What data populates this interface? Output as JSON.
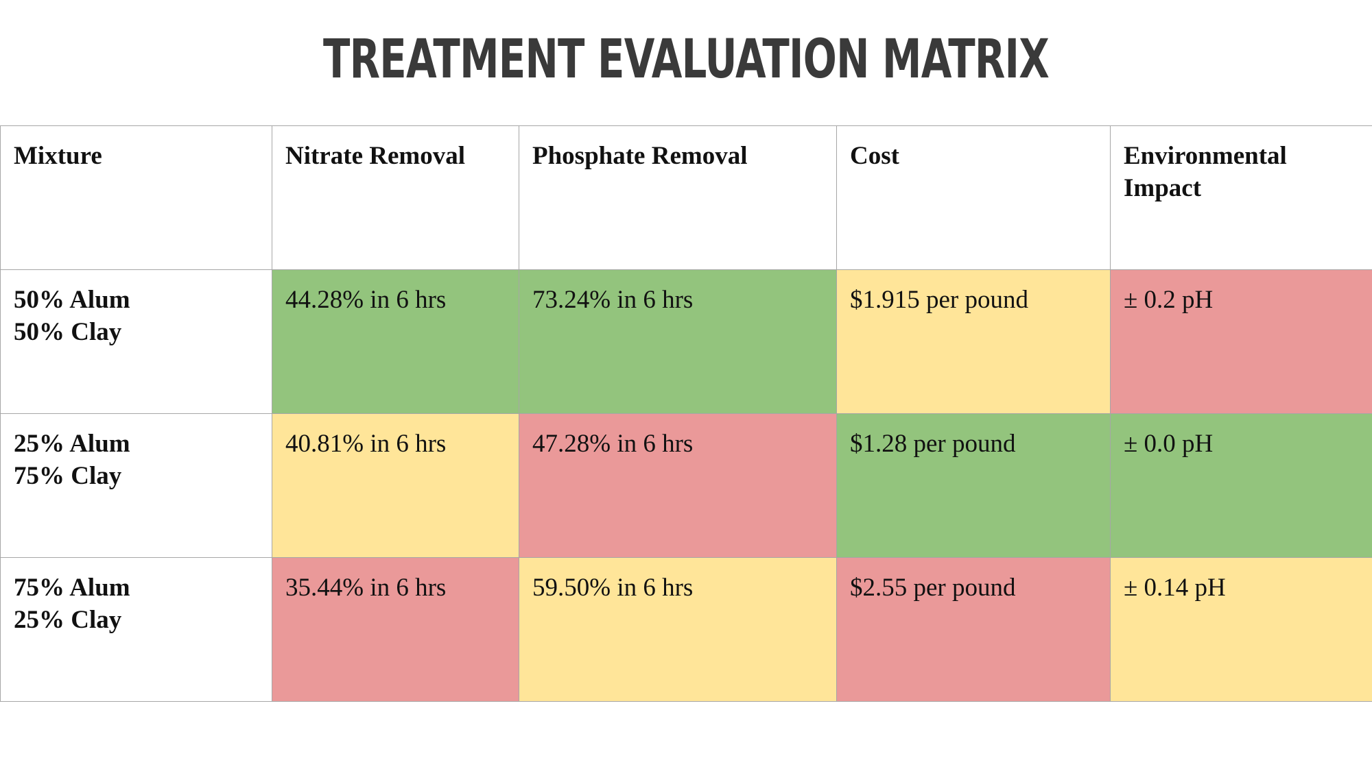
{
  "title": "TREATMENT EVALUATION MATRIX",
  "colors": {
    "good": "#93c47d",
    "medium": "#ffe599",
    "poor": "#ea9999"
  },
  "table": {
    "headers": [
      "Mixture",
      "Nitrate Removal",
      "Phosphate Removal",
      "Cost",
      "Environmental Impact"
    ],
    "rows": [
      {
        "mixture": [
          "50% Alum",
          "50% Clay"
        ],
        "cells": [
          {
            "value": "44.28% in 6 hrs",
            "rating": "good"
          },
          {
            "value": "73.24% in 6 hrs",
            "rating": "good"
          },
          {
            "value": "$1.915 per pound",
            "rating": "medium"
          },
          {
            "value": "± 0.2 pH",
            "rating": "poor"
          }
        ]
      },
      {
        "mixture": [
          "25% Alum",
          "75% Clay"
        ],
        "cells": [
          {
            "value": "40.81% in 6 hrs",
            "rating": "medium"
          },
          {
            "value": "47.28% in 6 hrs",
            "rating": "poor"
          },
          {
            "value": "$1.28 per pound",
            "rating": "good"
          },
          {
            "value": "± 0.0 pH",
            "rating": "good"
          }
        ]
      },
      {
        "mixture": [
          "75% Alum",
          "25% Clay"
        ],
        "cells": [
          {
            "value": "35.44% in 6 hrs",
            "rating": "poor"
          },
          {
            "value": "59.50% in 6 hrs",
            "rating": "medium"
          },
          {
            "value": "$2.55 per pound",
            "rating": "poor"
          },
          {
            "value": "± 0.14 pH",
            "rating": "medium"
          }
        ]
      }
    ]
  }
}
